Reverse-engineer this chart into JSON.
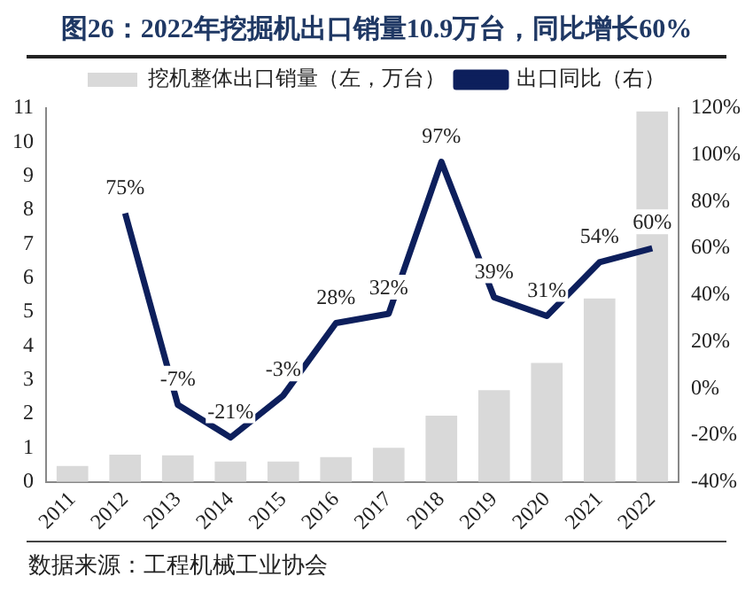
{
  "chart_data": {
    "type": "bar",
    "title": "图26：2022年挖掘机出口销量10.9万台，同比增长60%",
    "categories": [
      "2011",
      "2012",
      "2013",
      "2014",
      "2015",
      "2016",
      "2017",
      "2018",
      "2019",
      "2020",
      "2021",
      "2022"
    ],
    "series": [
      {
        "name": "挖机整体出口销量（左，万台）",
        "color": "#d9d9d9",
        "values": [
          0.47,
          0.8,
          0.78,
          0.6,
          0.6,
          0.73,
          1.0,
          1.95,
          2.7,
          3.5,
          5.4,
          10.9
        ]
      },
      {
        "name": "出口同比（右）",
        "type": "line",
        "axis": "y2",
        "color": "#0d1f5c",
        "values": [
          null,
          75,
          -7,
          -21,
          -3,
          28,
          32,
          97,
          39,
          31,
          54,
          60
        ],
        "value_labels": [
          null,
          "75%",
          "-7%",
          "-21%",
          "-3%",
          "28%",
          "32%",
          "97%",
          "39%",
          "31%",
          "54%",
          "60%"
        ]
      }
    ],
    "ylim": [
      0,
      11
    ],
    "yticks": [
      0,
      1,
      2,
      3,
      4,
      5,
      6,
      7,
      8,
      9,
      10,
      11
    ],
    "y2lim": [
      -40,
      120
    ],
    "y2ticks": [
      {
        "value": -40,
        "label": "-40%"
      },
      {
        "value": -20,
        "label": "-20%"
      },
      {
        "value": 0,
        "label": "0%"
      },
      {
        "value": 20,
        "label": "20%"
      },
      {
        "value": 40,
        "label": "40%"
      },
      {
        "value": 60,
        "label": "60%"
      },
      {
        "value": 80,
        "label": "80%"
      },
      {
        "value": 100,
        "label": "100%"
      },
      {
        "value": 120,
        "label": "120%"
      }
    ],
    "grid": false,
    "legend": "top",
    "marker": "none",
    "line_style": "solid",
    "annotations": [
      "数据来源：工程机械工业协会"
    ]
  }
}
